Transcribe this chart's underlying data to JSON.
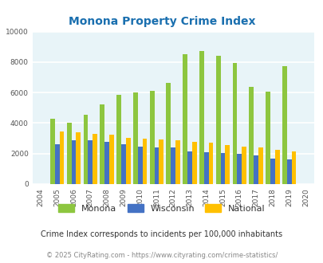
{
  "title": "Monona Property Crime Index",
  "years": [
    2004,
    2005,
    2006,
    2007,
    2008,
    2009,
    2010,
    2011,
    2012,
    2013,
    2014,
    2015,
    2016,
    2017,
    2018,
    2019,
    2020
  ],
  "monona": [
    null,
    4300,
    4000,
    4550,
    5250,
    5850,
    6000,
    6100,
    6650,
    8500,
    8750,
    8400,
    7950,
    6400,
    6050,
    7750,
    null
  ],
  "wisconsin": [
    null,
    2600,
    2850,
    2850,
    2750,
    2600,
    2450,
    2400,
    2400,
    2150,
    2100,
    2050,
    2000,
    1900,
    1650,
    1600,
    null
  ],
  "national": [
    null,
    3450,
    3400,
    3300,
    3250,
    3050,
    3000,
    2950,
    2850,
    2750,
    2700,
    2550,
    2450,
    2400,
    2250,
    2150,
    null
  ],
  "monona_color": "#8dc63f",
  "wisconsin_color": "#4472c4",
  "national_color": "#ffc000",
  "bg_color": "#e8f4f8",
  "ylim": [
    0,
    10000
  ],
  "yticks": [
    0,
    2000,
    4000,
    6000,
    8000,
    10000
  ],
  "grid_color": "#ffffff",
  "title_color": "#1a6faf",
  "footnote1": "Crime Index corresponds to incidents per 100,000 inhabitants",
  "footnote2": "© 2025 CityRating.com - https://www.cityrating.com/crime-statistics/",
  "legend_labels": [
    "Monona",
    "Wisconsin",
    "National"
  ]
}
